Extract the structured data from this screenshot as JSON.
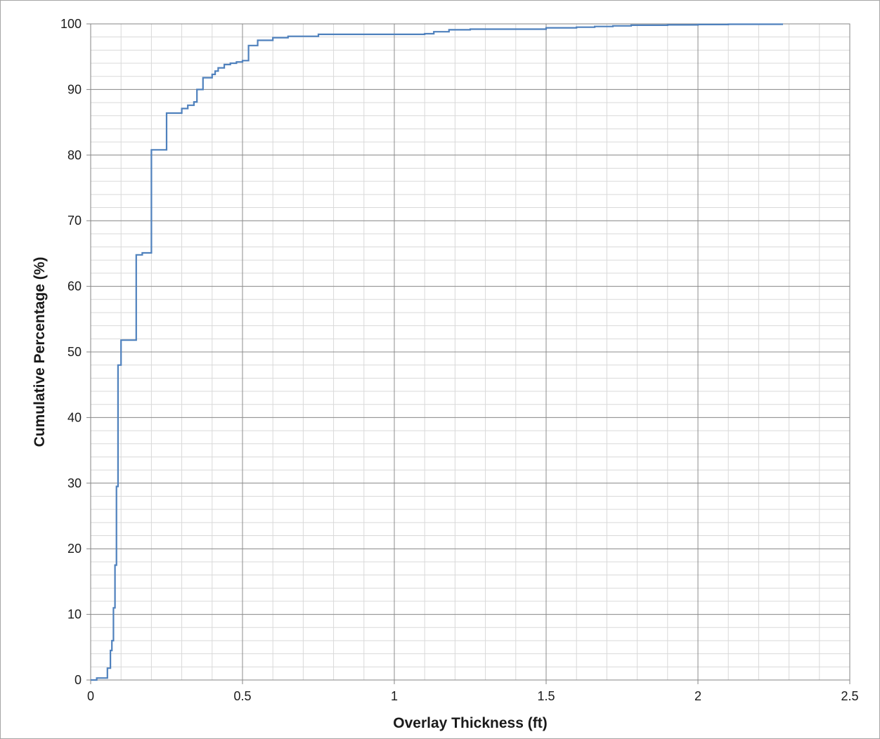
{
  "chart_data": {
    "type": "line",
    "title": "",
    "xlabel": "Overlay Thickness (ft)",
    "ylabel": "Cumulative Percentage (%)",
    "xlim": [
      0,
      2.5
    ],
    "ylim": [
      0,
      100
    ],
    "x_ticks": [
      0,
      0.5,
      1,
      1.5,
      2,
      2.5
    ],
    "x_tick_labels": [
      "0",
      "0.5",
      "1",
      "1.5",
      "2",
      "2.5"
    ],
    "y_ticks": [
      0,
      10,
      20,
      30,
      40,
      50,
      60,
      70,
      80,
      90,
      100
    ],
    "y_tick_labels": [
      "0",
      "10",
      "20",
      "30",
      "40",
      "50",
      "60",
      "70",
      "80",
      "90",
      "100"
    ],
    "x_minor_step": 0.1,
    "y_minor_step": 2,
    "grid": true,
    "legend": "none",
    "line_color": "#4f81bd",
    "step_plot": true,
    "series": [
      {
        "values_x": [
          0,
          0.02,
          0.055,
          0.065,
          0.07,
          0.075,
          0.08,
          0.085,
          0.09,
          0.1,
          0.15,
          0.17,
          0.2,
          0.25,
          0.3,
          0.32,
          0.34,
          0.35,
          0.37,
          0.4,
          0.41,
          0.42,
          0.44,
          0.46,
          0.48,
          0.5,
          0.52,
          0.55,
          0.6,
          0.65,
          0.75,
          1.0,
          1.1,
          1.13,
          1.18,
          1.25,
          1.5,
          1.6,
          1.66,
          1.72,
          1.78,
          1.9,
          2.0,
          2.1,
          2.28
        ],
        "values_y": [
          0,
          0.3,
          1.8,
          4.5,
          6,
          11,
          17.5,
          29.5,
          48,
          51.8,
          64.8,
          65.1,
          80.8,
          86.4,
          87.1,
          87.6,
          88.1,
          90,
          91.8,
          92.3,
          92.8,
          93.3,
          93.8,
          94,
          94.2,
          94.4,
          96.7,
          97.5,
          97.9,
          98.1,
          98.4,
          98.4,
          98.5,
          98.8,
          99.1,
          99.2,
          99.4,
          99.5,
          99.6,
          99.7,
          99.8,
          99.85,
          99.9,
          99.95,
          99.95
        ]
      }
    ]
  }
}
